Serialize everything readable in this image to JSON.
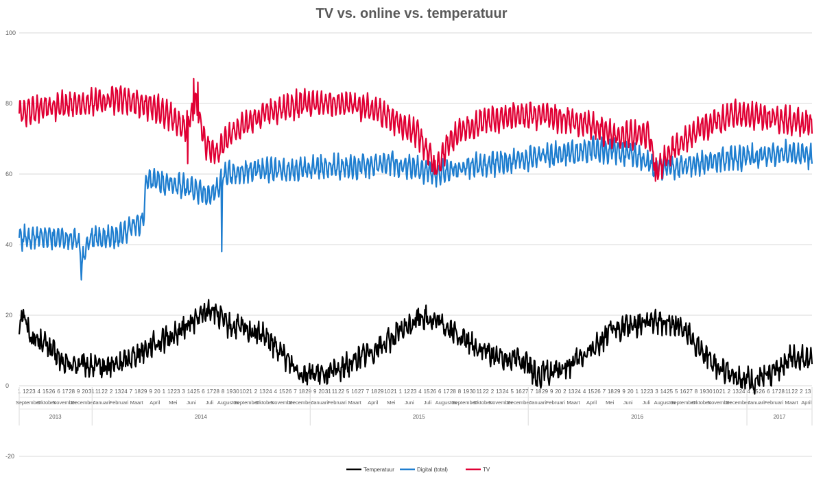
{
  "chart_data": {
    "type": "line",
    "title": "TV vs. online vs. temperatuur",
    "ylim": [
      -20,
      100
    ],
    "yticks": [
      -20,
      0,
      20,
      40,
      60,
      80,
      100
    ],
    "grid": true,
    "legend_position": "bottom",
    "x_start": "2013-09-01",
    "x_end": "2017-04-20",
    "years": [
      {
        "label": "2013",
        "start": "2013-09-01",
        "end": "2013-12-31"
      },
      {
        "label": "2014",
        "start": "2014-01-01",
        "end": "2014-12-31"
      },
      {
        "label": "2015",
        "start": "2015-01-01",
        "end": "2015-12-31"
      },
      {
        "label": "2016",
        "start": "2016-01-01",
        "end": "2016-12-31"
      },
      {
        "label": "2017",
        "start": "2017-01-01",
        "end": "2017-04-20"
      }
    ],
    "months": [
      {
        "label": "September",
        "start": "2013-09-01"
      },
      {
        "label": "Oktober",
        "start": "2013-10-01"
      },
      {
        "label": "November",
        "start": "2013-11-01"
      },
      {
        "label": "December",
        "start": "2013-12-01"
      },
      {
        "label": "Januari",
        "start": "2014-01-01"
      },
      {
        "label": "Februari",
        "start": "2014-02-01"
      },
      {
        "label": "Maart",
        "start": "2014-03-01"
      },
      {
        "label": "April",
        "start": "2014-04-01"
      },
      {
        "label": "Mei",
        "start": "2014-05-01"
      },
      {
        "label": "Juni",
        "start": "2014-06-01"
      },
      {
        "label": "Juli",
        "start": "2014-07-01"
      },
      {
        "label": "Augustus",
        "start": "2014-08-01"
      },
      {
        "label": "September",
        "start": "2014-09-01"
      },
      {
        "label": "Oktober",
        "start": "2014-10-01"
      },
      {
        "label": "November",
        "start": "2014-11-01"
      },
      {
        "label": "December",
        "start": "2014-12-01"
      },
      {
        "label": "Januari",
        "start": "2015-01-01"
      },
      {
        "label": "Februari",
        "start": "2015-02-01"
      },
      {
        "label": "Maart",
        "start": "2015-03-01"
      },
      {
        "label": "April",
        "start": "2015-04-01"
      },
      {
        "label": "Mei",
        "start": "2015-05-01"
      },
      {
        "label": "Juni",
        "start": "2015-06-01"
      },
      {
        "label": "Juli",
        "start": "2015-07-01"
      },
      {
        "label": "Augustus",
        "start": "2015-08-01"
      },
      {
        "label": "September",
        "start": "2015-09-01"
      },
      {
        "label": "Oktober",
        "start": "2015-10-01"
      },
      {
        "label": "November",
        "start": "2015-11-01"
      },
      {
        "label": "December",
        "start": "2015-12-01"
      },
      {
        "label": "Januari",
        "start": "2016-01-01"
      },
      {
        "label": "Februari",
        "start": "2016-02-01"
      },
      {
        "label": "Maart",
        "start": "2016-03-01"
      },
      {
        "label": "April",
        "start": "2016-04-01"
      },
      {
        "label": "Mei",
        "start": "2016-05-01"
      },
      {
        "label": "Juni",
        "start": "2016-06-01"
      },
      {
        "label": "Juli",
        "start": "2016-07-01"
      },
      {
        "label": "Augustus",
        "start": "2016-08-01"
      },
      {
        "label": "September",
        "start": "2016-09-01"
      },
      {
        "label": "Oktober",
        "start": "2016-10-01"
      },
      {
        "label": "November",
        "start": "2016-11-01"
      },
      {
        "label": "December",
        "start": "2016-12-01"
      },
      {
        "label": "Januari",
        "start": "2017-01-01"
      },
      {
        "label": "Februari",
        "start": "2017-02-01"
      },
      {
        "label": "Maart",
        "start": "2017-03-01"
      },
      {
        "label": "April",
        "start": "2017-04-01"
      }
    ],
    "day_tick_interval": 11,
    "series": [
      {
        "name": "Temperatuur",
        "color": "#000000",
        "weekly_amplitude": 1.5,
        "noise": 2.5,
        "anchors": [
          [
            "2013-09-01",
            15
          ],
          [
            "2013-09-05",
            22
          ],
          [
            "2013-09-20",
            14
          ],
          [
            "2013-10-15",
            12
          ],
          [
            "2013-11-15",
            6
          ],
          [
            "2013-12-15",
            6
          ],
          [
            "2014-01-15",
            5
          ],
          [
            "2014-02-15",
            6
          ],
          [
            "2014-03-15",
            9
          ],
          [
            "2014-04-15",
            12
          ],
          [
            "2014-05-15",
            14
          ],
          [
            "2014-06-10",
            17
          ],
          [
            "2014-07-20",
            22
          ],
          [
            "2014-08-15",
            17
          ],
          [
            "2014-09-15",
            16
          ],
          [
            "2014-10-15",
            14
          ],
          [
            "2014-11-15",
            9
          ],
          [
            "2014-12-15",
            4
          ],
          [
            "2015-01-15",
            3
          ],
          [
            "2015-02-15",
            4
          ],
          [
            "2015-03-15",
            7
          ],
          [
            "2015-04-15",
            10
          ],
          [
            "2015-05-15",
            13
          ],
          [
            "2015-06-15",
            17
          ],
          [
            "2015-07-05",
            20
          ],
          [
            "2015-08-15",
            17
          ],
          [
            "2015-09-15",
            13
          ],
          [
            "2015-10-15",
            10
          ],
          [
            "2015-11-15",
            8
          ],
          [
            "2015-12-15",
            8
          ],
          [
            "2016-01-15",
            3
          ],
          [
            "2016-02-15",
            4
          ],
          [
            "2016-03-15",
            6
          ],
          [
            "2016-04-15",
            10
          ],
          [
            "2016-05-15",
            15
          ],
          [
            "2016-06-15",
            17
          ],
          [
            "2016-07-15",
            18
          ],
          [
            "2016-08-15",
            18
          ],
          [
            "2016-09-15",
            17
          ],
          [
            "2016-10-15",
            10
          ],
          [
            "2016-11-15",
            5
          ],
          [
            "2016-12-15",
            3
          ],
          [
            "2017-01-15",
            1
          ],
          [
            "2017-02-15",
            4
          ],
          [
            "2017-03-15",
            8
          ],
          [
            "2017-04-20",
            8
          ]
        ]
      },
      {
        "name": "Digital (total)",
        "color": "#1f7ecf",
        "weekly_amplitude": 2.5,
        "noise": 1.5,
        "anchors": [
          [
            "2013-09-01",
            42
          ],
          [
            "2013-12-07",
            42
          ],
          [
            "2013-12-15",
            35
          ],
          [
            "2013-12-28",
            42
          ],
          [
            "2014-02-15",
            42
          ],
          [
            "2014-03-01",
            44
          ],
          [
            "2014-03-28",
            47
          ],
          [
            "2014-04-02",
            58
          ],
          [
            "2014-05-15",
            57
          ],
          [
            "2014-06-15",
            56
          ],
          [
            "2014-07-10",
            54
          ],
          [
            "2014-07-28",
            55
          ],
          [
            "2014-08-10",
            60
          ],
          [
            "2014-09-15",
            61
          ],
          [
            "2014-11-15",
            61
          ],
          [
            "2015-01-15",
            62
          ],
          [
            "2015-03-15",
            62
          ],
          [
            "2015-05-15",
            63
          ],
          [
            "2015-06-15",
            62
          ],
          [
            "2015-08-01",
            60
          ],
          [
            "2015-09-15",
            62
          ],
          [
            "2015-11-15",
            63
          ],
          [
            "2016-01-15",
            65
          ],
          [
            "2016-03-15",
            66
          ],
          [
            "2016-04-20",
            67
          ],
          [
            "2016-06-15",
            66
          ],
          [
            "2016-07-30",
            62
          ],
          [
            "2016-09-15",
            62
          ],
          [
            "2016-11-15",
            64
          ],
          [
            "2017-01-15",
            65
          ],
          [
            "2017-03-15",
            66
          ],
          [
            "2017-04-20",
            65
          ]
        ],
        "spikes": [
          [
            "2013-12-14",
            30
          ],
          [
            "2014-08-06",
            38
          ]
        ]
      },
      {
        "name": "TV",
        "color": "#e00034",
        "weekly_amplitude": 3,
        "noise": 1.5,
        "anchors": [
          [
            "2013-09-01",
            77
          ],
          [
            "2013-10-15",
            79
          ],
          [
            "2013-12-15",
            80
          ],
          [
            "2014-02-15",
            81
          ],
          [
            "2014-04-15",
            79
          ],
          [
            "2014-05-15",
            76
          ],
          [
            "2014-06-05",
            73
          ],
          [
            "2014-06-25",
            80
          ],
          [
            "2014-07-10",
            68
          ],
          [
            "2014-07-28",
            66
          ],
          [
            "2014-08-25",
            72
          ],
          [
            "2014-10-15",
            77
          ],
          [
            "2014-12-15",
            80
          ],
          [
            "2015-02-15",
            80
          ],
          [
            "2015-04-01",
            79
          ],
          [
            "2015-05-15",
            76
          ],
          [
            "2015-07-01",
            71
          ],
          [
            "2015-08-01",
            62
          ],
          [
            "2015-08-25",
            70
          ],
          [
            "2015-10-15",
            75
          ],
          [
            "2015-12-15",
            77
          ],
          [
            "2016-02-15",
            76
          ],
          [
            "2016-04-15",
            74
          ],
          [
            "2016-05-20",
            71
          ],
          [
            "2016-07-20",
            71
          ],
          [
            "2016-08-05",
            61
          ],
          [
            "2016-08-25",
            66
          ],
          [
            "2016-10-15",
            73
          ],
          [
            "2016-12-15",
            77
          ],
          [
            "2017-02-15",
            76
          ],
          [
            "2017-04-20",
            74
          ]
        ],
        "spikes": [
          [
            "2014-06-10",
            63
          ],
          [
            "2014-06-20",
            87
          ],
          [
            "2014-06-27",
            86
          ],
          [
            "2015-07-28",
            60
          ],
          [
            "2016-08-01",
            58
          ]
        ]
      }
    ]
  }
}
